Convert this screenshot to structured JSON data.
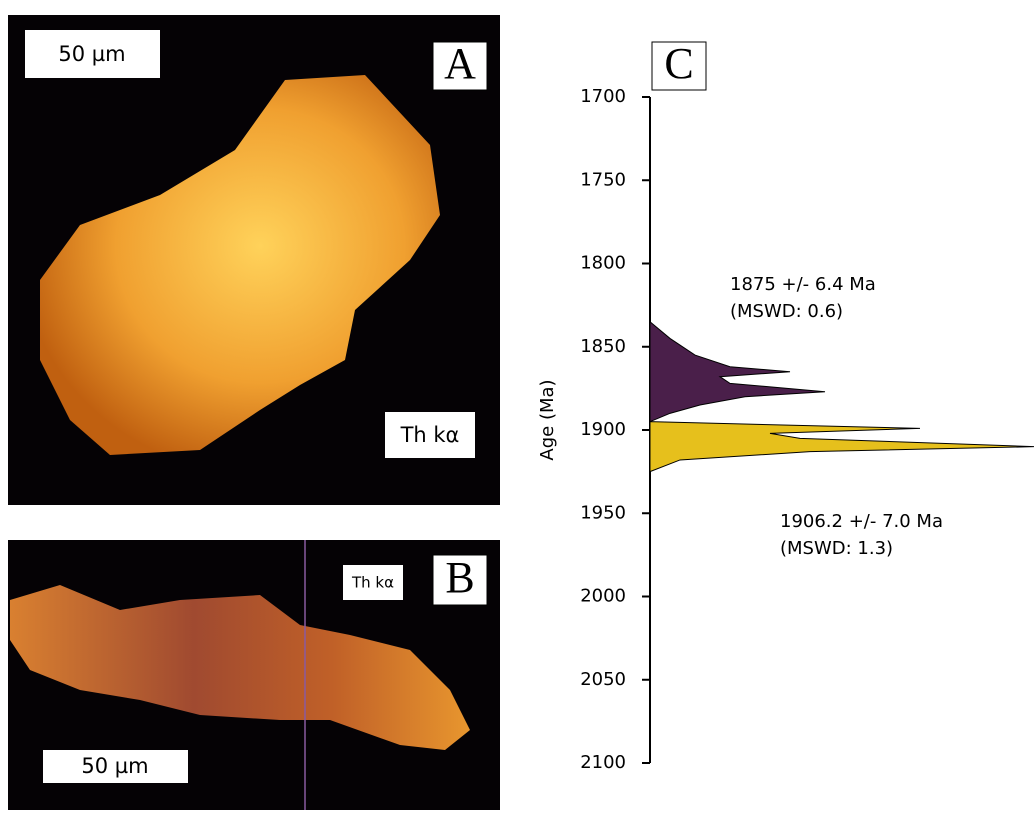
{
  "panel_a": {
    "label": "A",
    "scale_bar": "50 µm",
    "element": "Th kα"
  },
  "panel_b": {
    "label": "B",
    "scale_bar": "50 µm",
    "element": "Th kα"
  },
  "chart_data": {
    "type": "density",
    "label": "C",
    "ylabel": "Age (Ma)",
    "ylim": [
      1700,
      2100
    ],
    "yticks": [
      1700,
      1750,
      1800,
      1850,
      1900,
      1950,
      2000,
      2050,
      2100
    ],
    "annotations": [
      "1875 +/- 6.4 Ma",
      "(MSWD: 0.6)",
      "1906.2 +/- 7.0 Ma",
      "(MSWD: 1.3)"
    ],
    "series": [
      {
        "color": "#4a1f4a",
        "ages": [
          1835,
          1845,
          1855,
          1862,
          1865,
          1868,
          1872,
          1877,
          1880,
          1885,
          1890,
          1895
        ],
        "values": [
          0,
          20,
          45,
          80,
          140,
          70,
          80,
          175,
          95,
          50,
          20,
          0
        ]
      },
      {
        "color": "#e6c01c",
        "ages": [
          1895,
          1899,
          1902,
          1905,
          1910,
          1913,
          1918,
          1925
        ],
        "values": [
          0,
          270,
          120,
          150,
          385,
          160,
          30,
          0
        ]
      }
    ]
  }
}
